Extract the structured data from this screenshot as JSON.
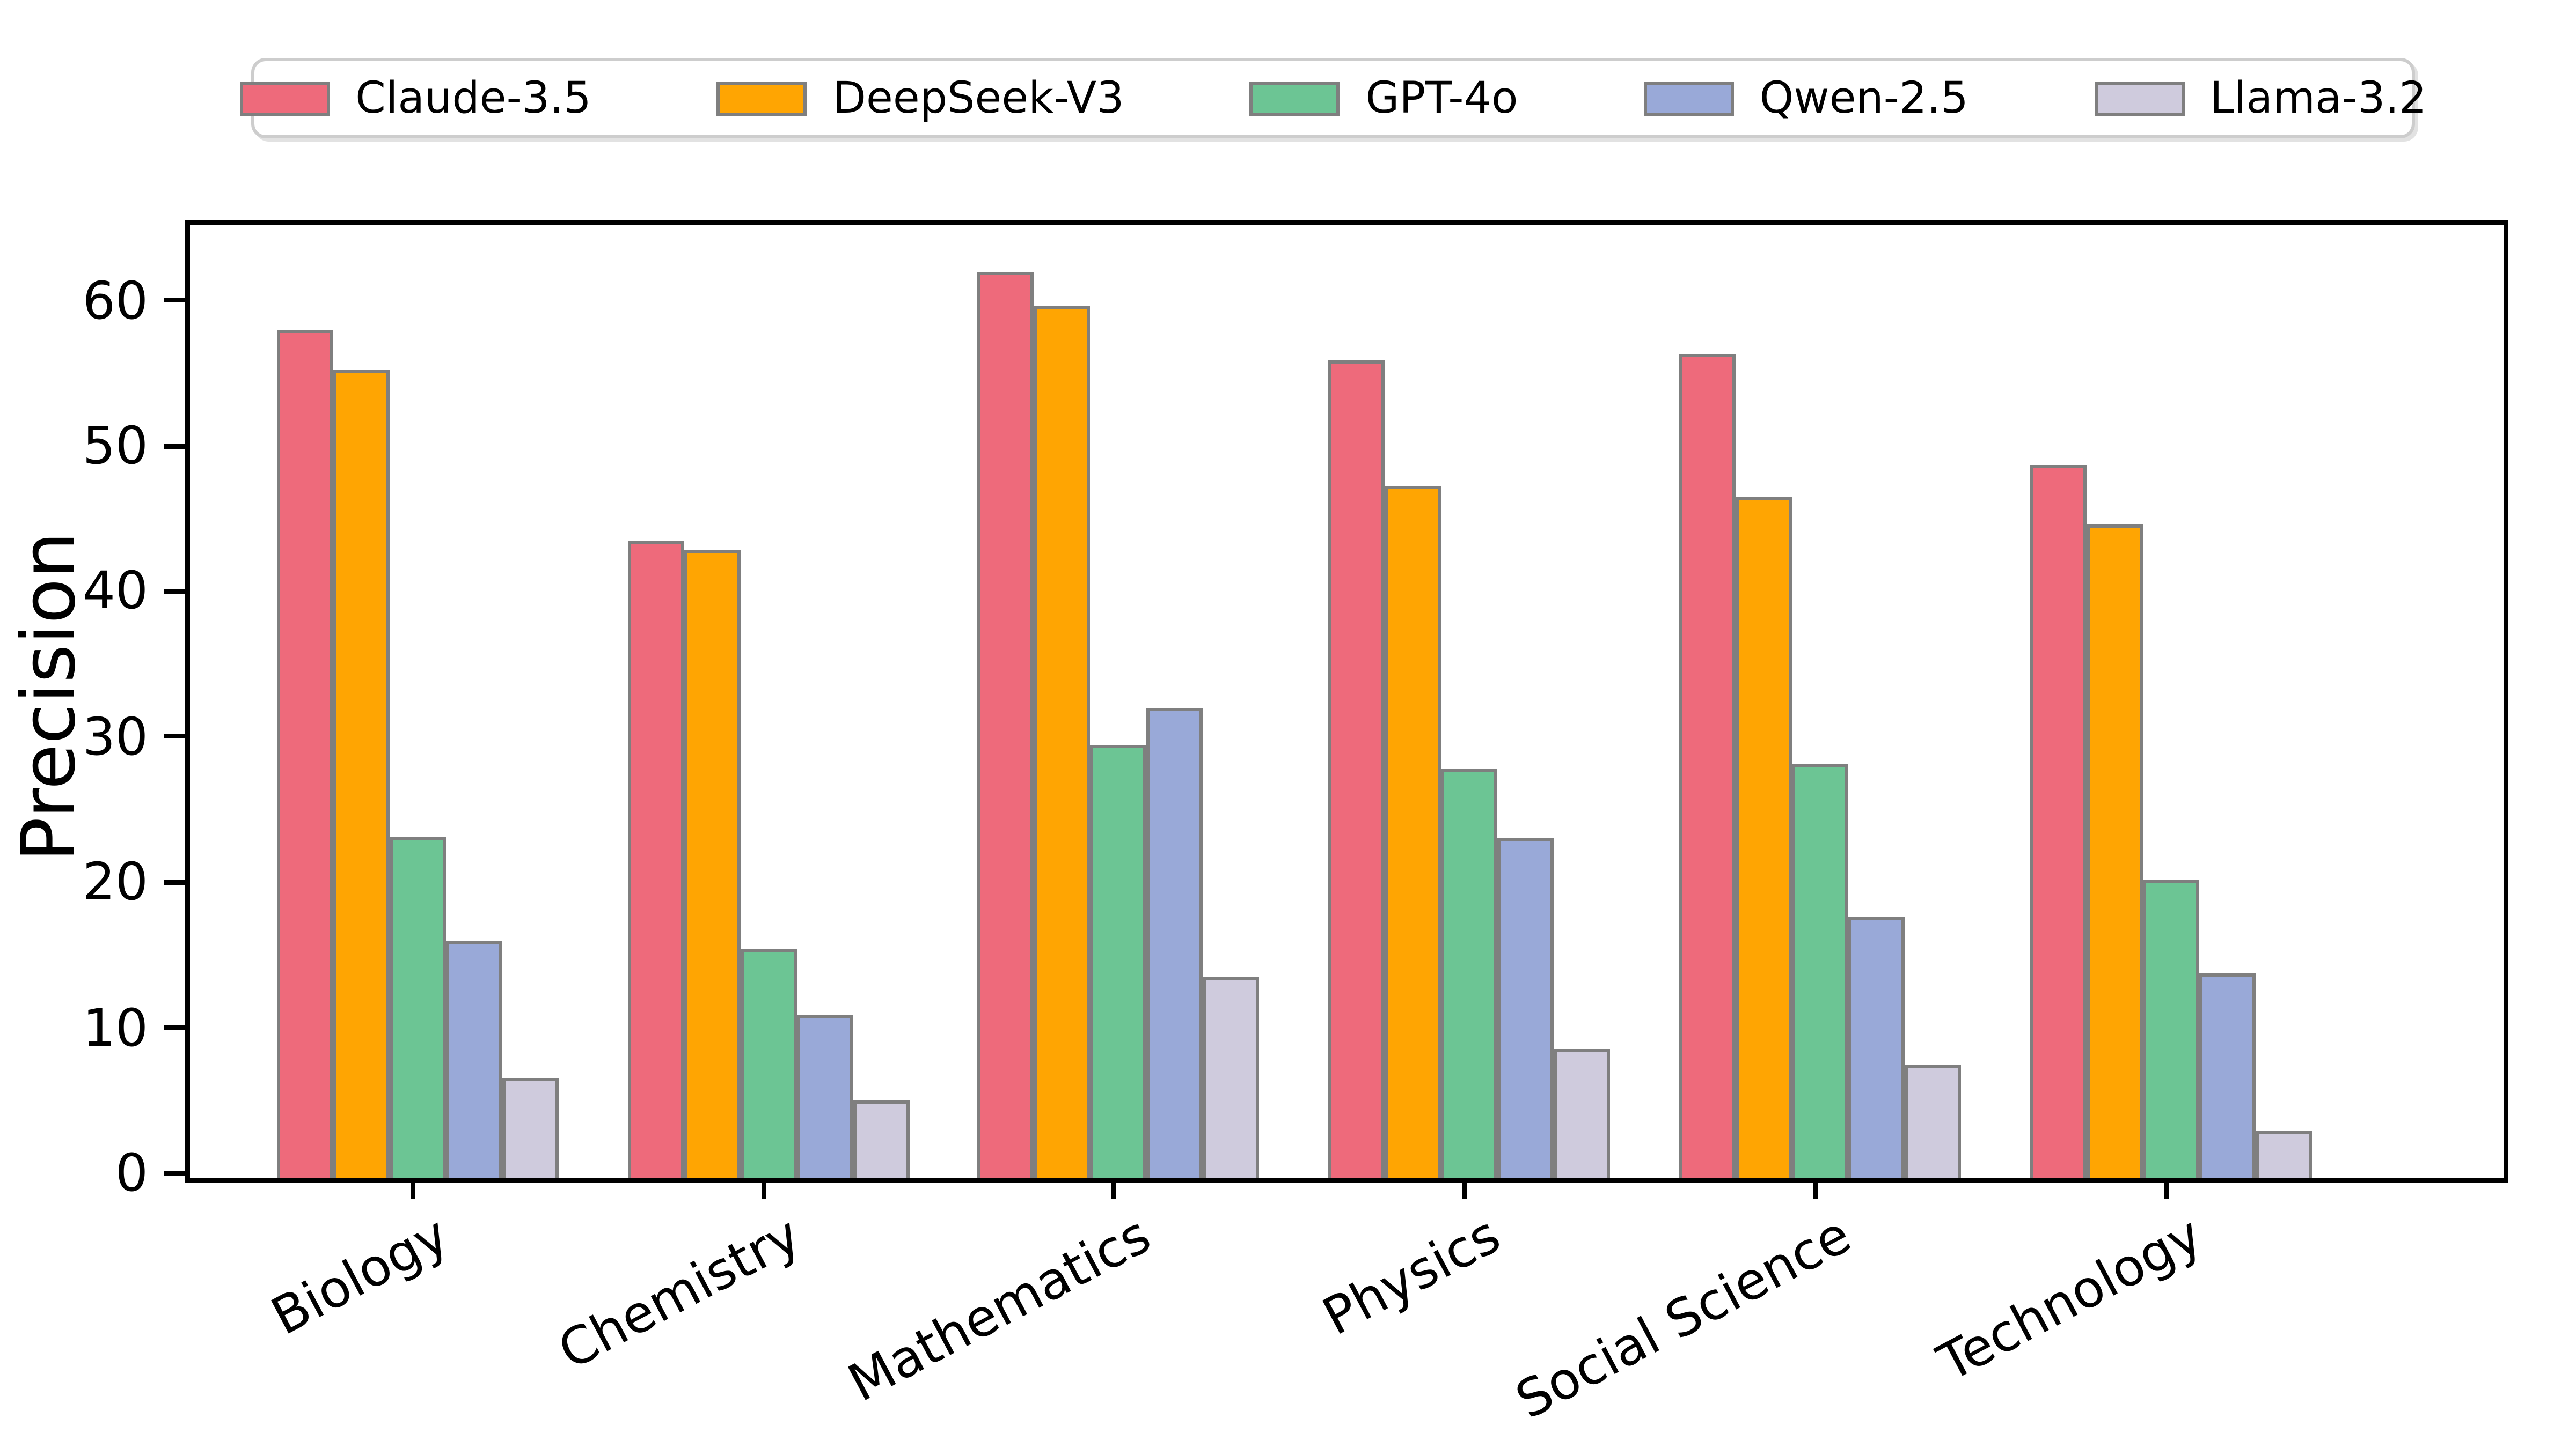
{
  "chart_data": {
    "type": "bar",
    "title": "",
    "xlabel": "",
    "ylabel": "Precision",
    "categories": [
      "Biology",
      "Chemistry",
      "Mathematics",
      "Physics",
      "Social Science",
      "Technology"
    ],
    "series": [
      {
        "name": "Claude-3.5",
        "color": "#EE6A7B",
        "values": [
          58.3,
          43.8,
          62.3,
          56.2,
          56.7,
          49.0
        ]
      },
      {
        "name": "DeepSeek-V3",
        "color": "#FFA502",
        "values": [
          55.5,
          43.1,
          60.0,
          47.6,
          46.8,
          44.9
        ]
      },
      {
        "name": "GPT-4o",
        "color": "#6CC594",
        "values": [
          23.5,
          15.7,
          29.8,
          28.1,
          28.4,
          20.5
        ]
      },
      {
        "name": "Qwen-2.5",
        "color": "#99A9D8",
        "values": [
          16.3,
          11.2,
          32.3,
          23.3,
          17.9,
          14.0
        ]
      },
      {
        "name": "Llama-3.2",
        "color": "#CFCBDD",
        "values": [
          6.9,
          5.3,
          13.8,
          8.8,
          7.7,
          3.2
        ]
      }
    ],
    "ylim": [
      0,
      65.5
    ],
    "yticks": [
      0,
      10,
      20,
      30,
      40,
      50,
      60
    ],
    "grid": false,
    "legend_position": "top",
    "bar_edge_color": "#7f7f7f",
    "axis_color": "#000000",
    "legend_border_color": "#cdcdcd"
  }
}
